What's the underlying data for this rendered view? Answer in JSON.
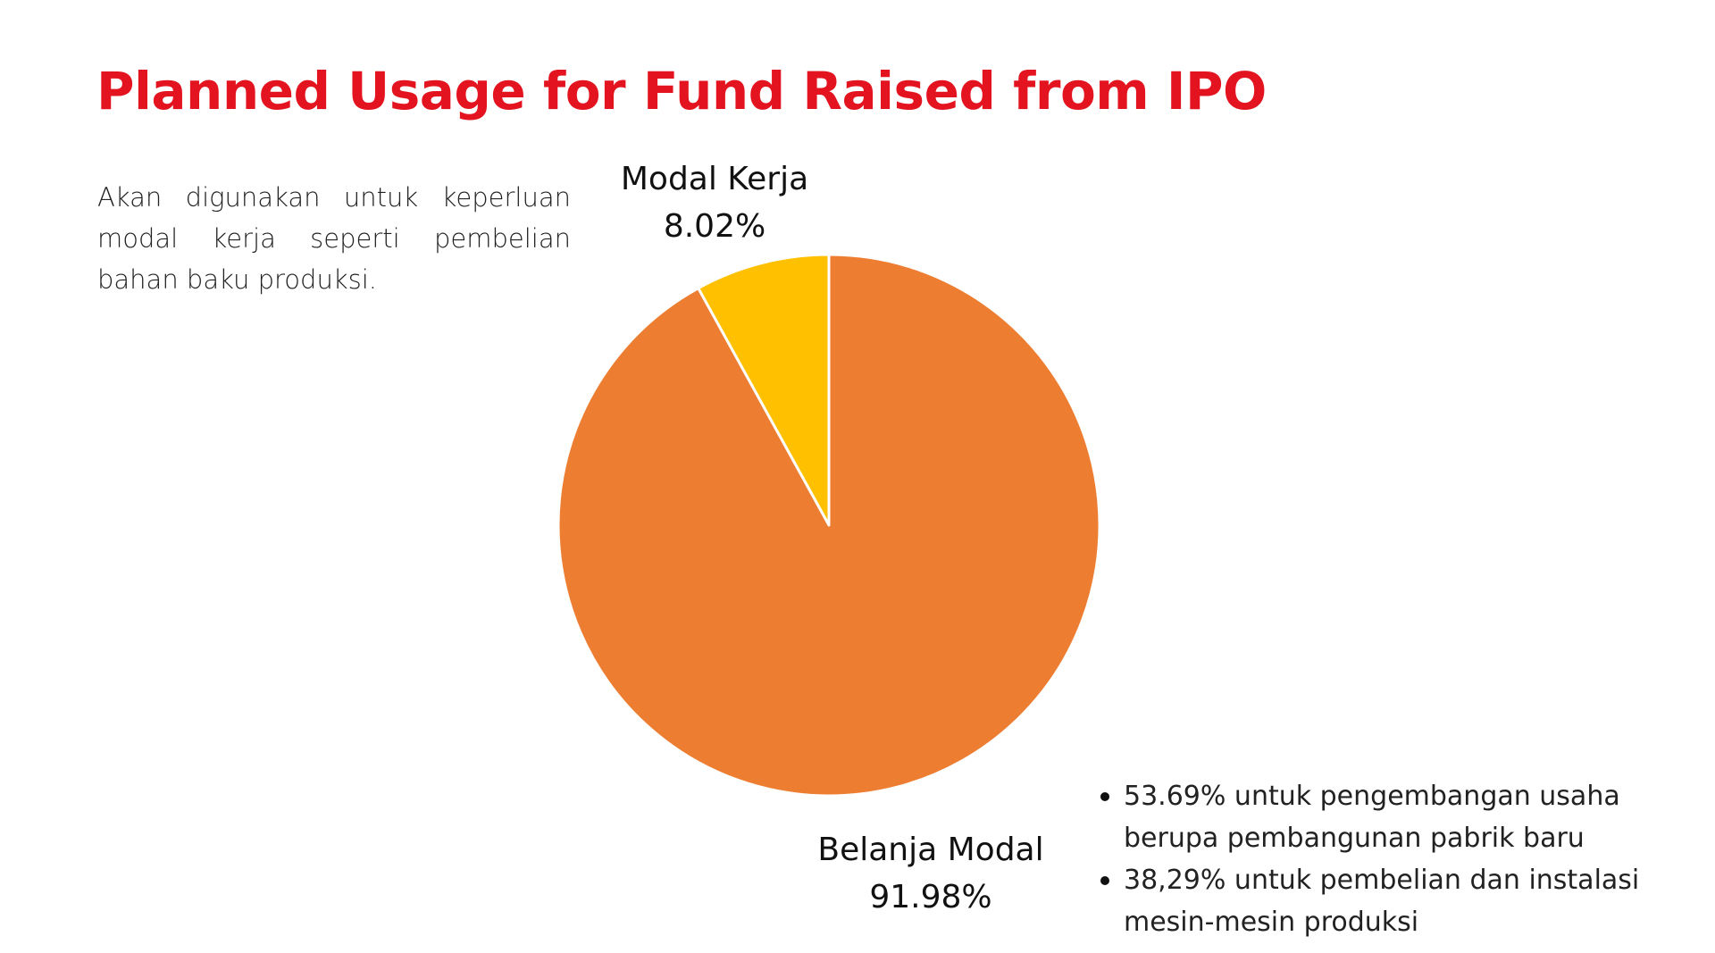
{
  "title": "Planned Usage for Fund Raised from IPO",
  "description": "Akan digunakan untuk keperluan modal kerja seperti pembelian bahan baku produksi.",
  "colors": {
    "title": "#e3141f",
    "modal_kerja": "#ffc000",
    "belanja_modal": "#ed7d31",
    "slice_border": "#ffffff"
  },
  "chart_data": {
    "type": "pie",
    "title": "",
    "slices": [
      {
        "name": "Modal Kerja",
        "value": 8.02,
        "label": "8.02%",
        "color": "#ffc000"
      },
      {
        "name": "Belanja Modal",
        "value": 91.98,
        "label": "91.98%",
        "color": "#ed7d31"
      }
    ],
    "start_angle_deg": 0,
    "direction": "clockwise",
    "legend": "none"
  },
  "breakdown": [
    {
      "line1": "53.69% untuk pengembangan usaha",
      "line2": "berupa pembangunan pabrik baru"
    },
    {
      "line1": "38,29% untuk pembelian dan instalasi",
      "line2": "mesin-mesin produksi"
    }
  ]
}
